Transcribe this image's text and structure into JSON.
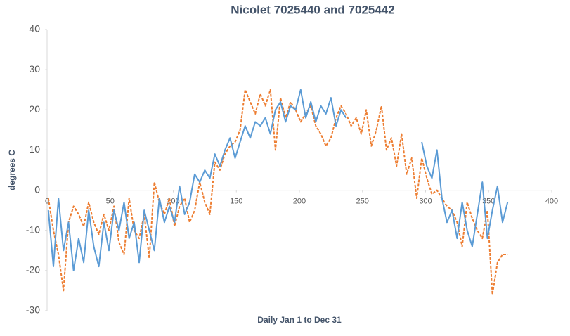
{
  "chart_data": {
    "type": "line",
    "title": "Nicolet 7025440 and 7025442",
    "xlabel": "Daily Jan 1 to Dec 31",
    "ylabel": "degrees C",
    "xlim": [
      0,
      400
    ],
    "xticks": [
      0,
      50,
      100,
      150,
      200,
      250,
      300,
      350,
      400
    ],
    "ylim": [
      -30,
      40
    ],
    "yticks": [
      -30,
      -20,
      -10,
      0,
      10,
      20,
      30,
      40
    ],
    "grid": false,
    "x": [
      1,
      5,
      9,
      13,
      17,
      21,
      25,
      29,
      33,
      37,
      41,
      45,
      49,
      53,
      57,
      61,
      65,
      69,
      73,
      77,
      81,
      85,
      89,
      93,
      97,
      101,
      105,
      109,
      113,
      117,
      121,
      125,
      129,
      133,
      137,
      141,
      145,
      149,
      153,
      157,
      161,
      165,
      169,
      173,
      177,
      181,
      185,
      189,
      193,
      197,
      201,
      205,
      209,
      213,
      217,
      221,
      225,
      229,
      233,
      237,
      241,
      245,
      249,
      253,
      257,
      261,
      265,
      269,
      273,
      277,
      281,
      285,
      289,
      293,
      297,
      301,
      305,
      309,
      313,
      317,
      321,
      325,
      329,
      333,
      337,
      341,
      345,
      349,
      353,
      357,
      361,
      365
    ],
    "series": [
      {
        "color": "#5b9bd5",
        "dashed": false,
        "values": [
          -5,
          -19,
          -2,
          -15,
          -8,
          -20,
          -12,
          -18,
          -5,
          -14,
          -19,
          -8,
          -15,
          -5,
          -10,
          -3,
          -12,
          -8,
          -18,
          -5,
          -10,
          -15,
          -2,
          -8,
          -4,
          -8,
          1,
          -6,
          -3,
          4,
          2,
          5,
          3,
          9,
          6,
          10,
          13,
          8,
          12,
          16,
          13,
          17,
          16,
          18,
          14,
          20,
          22,
          17,
          21,
          20,
          25,
          18,
          22,
          17,
          21,
          19,
          23,
          16,
          20,
          18,
          null,
          null,
          null,
          null,
          null,
          null,
          null,
          null,
          null,
          null,
          null,
          null,
          null,
          null,
          12,
          6,
          3,
          10,
          -2,
          -8,
          -5,
          -12,
          -3,
          -10,
          -14,
          -6,
          2,
          -12,
          -5,
          1,
          -8,
          -3
        ]
      },
      {
        "color": "#ed7d31",
        "dashed": true,
        "values": [
          -2,
          -10,
          -16,
          -25,
          -8,
          -4,
          -6,
          -9,
          -3,
          -8,
          -11,
          -6,
          -10,
          -4,
          -13,
          -16,
          -2,
          -10,
          -12,
          -6,
          -17,
          2,
          -3,
          -6,
          -2,
          -9,
          -4,
          -2,
          -8,
          -5,
          2,
          -3,
          -6,
          7,
          5,
          9,
          11,
          12,
          15,
          25,
          22,
          19,
          24,
          21,
          25,
          10,
          23,
          18,
          22,
          20,
          17,
          19,
          21,
          16,
          14,
          11,
          13,
          18,
          21,
          19,
          16,
          18,
          14,
          20,
          11,
          15,
          21,
          10,
          13,
          6,
          14,
          4,
          8,
          -2,
          8,
          3,
          -1,
          0,
          -2,
          -4,
          -5,
          -8,
          -14,
          -3,
          -7,
          -10,
          -12,
          -5,
          -26,
          -18,
          -16,
          -16
        ]
      }
    ]
  }
}
